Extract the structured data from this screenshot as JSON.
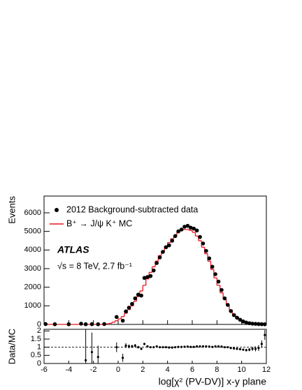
{
  "chart_data": [
    {
      "type": "histogram",
      "ylabel": "Events",
      "xlim": [
        -6,
        12
      ],
      "xticks": [
        -6,
        -4,
        -2,
        0,
        2,
        4,
        6,
        8,
        10,
        12
      ],
      "ylim": [
        0,
        6900
      ],
      "yticks": [
        0,
        1000,
        2000,
        3000,
        4000,
        5000,
        6000
      ],
      "annotations": [
        "ATLAS",
        "√s = 8 TeV, 2.7 fb⁻¹"
      ],
      "mc": {
        "name": "B⁺ → J/ψ K⁺ MC",
        "color": "#e8141e",
        "bins": [
          -6,
          -1,
          -0.75,
          -0.5,
          -0.25,
          0,
          0.25,
          0.5,
          0.75,
          1,
          1.25,
          1.5,
          1.75,
          2,
          2.25,
          2.5,
          2.75,
          3,
          3.25,
          3.5,
          3.75,
          4,
          4.25,
          4.5,
          4.75,
          5,
          5.25,
          5.5,
          5.75,
          6,
          6.25,
          6.5,
          6.75,
          7,
          7.25,
          7.5,
          7.75,
          8,
          8.25,
          8.5,
          8.75,
          9,
          9.25,
          9.5,
          9.75,
          10,
          10.25,
          10.5,
          10.75,
          11,
          11.25,
          11.5,
          11.75,
          12
        ],
        "counts": [
          0,
          30,
          60,
          120,
          200,
          300,
          420,
          600,
          800,
          1000,
          1250,
          1500,
          1800,
          2100,
          2450,
          2800,
          3100,
          3400,
          3700,
          3950,
          4200,
          4400,
          4600,
          4800,
          4950,
          5050,
          5100,
          5100,
          5050,
          4950,
          4750,
          4500,
          4150,
          3800,
          3400,
          2950,
          2500,
          2100,
          1700,
          1350,
          1050,
          780,
          560,
          400,
          280,
          190,
          130,
          90,
          60,
          40,
          25,
          15,
          10
        ]
      },
      "data": {
        "name": "2012 Background-subtracted data",
        "color": "#000000",
        "x": [
          -5.875,
          -5.125,
          -4.0,
          -3.0,
          -2.625,
          -2.125,
          -1.625,
          -1.125,
          -0.125,
          0.375,
          0.625,
          0.875,
          1.125,
          1.375,
          1.625,
          1.875,
          2.125,
          2.375,
          2.625,
          2.875,
          3.125,
          3.375,
          3.625,
          3.875,
          4.125,
          4.375,
          4.625,
          4.875,
          5.125,
          5.375,
          5.625,
          5.875,
          6.125,
          6.375,
          6.625,
          6.875,
          7.125,
          7.375,
          7.625,
          7.875,
          8.125,
          8.375,
          8.625,
          8.875,
          9.125,
          9.375,
          9.625,
          9.875,
          10.125,
          10.375,
          10.625,
          10.875,
          11.125,
          11.375,
          11.625,
          11.875
        ],
        "values": [
          20,
          10,
          10,
          40,
          10,
          15,
          10,
          20,
          400,
          200,
          700,
          900,
          1100,
          1400,
          1600,
          1550,
          2500,
          2550,
          2600,
          2900,
          3300,
          3600,
          3900,
          4150,
          4250,
          4500,
          4750,
          5000,
          5100,
          5250,
          5300,
          5200,
          5150,
          5050,
          4700,
          4350,
          3950,
          3550,
          3100,
          2700,
          2300,
          1850,
          1400,
          1050,
          720,
          500,
          360,
          250,
          160,
          100,
          65,
          40,
          30,
          20,
          12,
          8
        ]
      }
    },
    {
      "type": "scatter",
      "ylabel": "Data/MC",
      "xlabel": "log[χ² (PV-DV)] x-y plane",
      "xlim": [
        -6,
        12
      ],
      "xticks": [
        -6,
        -4,
        -2,
        0,
        2,
        4,
        6,
        8,
        10,
        12
      ],
      "ylim": [
        0,
        2.1
      ],
      "yticks": [
        0,
        0.5,
        1,
        1.5,
        2
      ],
      "reference": 1,
      "color": "#000000",
      "x": [
        -5.875,
        -5.125,
        -4.0,
        -3.0,
        -2.625,
        -2.125,
        -1.625,
        -1.125,
        -0.125,
        0.375,
        0.625,
        0.875,
        1.125,
        1.375,
        1.625,
        1.875,
        2.125,
        2.375,
        2.625,
        2.875,
        3.125,
        3.375,
        3.625,
        3.875,
        4.125,
        4.375,
        4.625,
        4.875,
        5.125,
        5.375,
        5.625,
        5.875,
        6.125,
        6.375,
        6.625,
        6.875,
        7.125,
        7.375,
        7.625,
        7.875,
        8.125,
        8.375,
        8.625,
        8.875,
        9.125,
        9.375,
        9.625,
        9.875,
        10.125,
        10.375,
        10.625,
        10.875,
        11.125,
        11.375,
        11.625,
        11.875
      ],
      "values": [
        null,
        null,
        null,
        null,
        0.2,
        0.7,
        0.4,
        null,
        1.0,
        0.35,
        1.1,
        1.05,
        1.05,
        1.1,
        1.0,
        0.9,
        1.2,
        1.05,
        1.0,
        1.0,
        1.05,
        1.0,
        1.0,
        1.0,
        0.98,
        0.98,
        1.0,
        1.02,
        1.02,
        1.03,
        1.04,
        1.02,
        1.02,
        1.05,
        1.05,
        1.05,
        1.05,
        1.04,
        1.02,
        1.05,
        1.05,
        1.04,
        1.0,
        1.0,
        0.95,
        0.92,
        0.9,
        0.88,
        0.85,
        0.82,
        0.85,
        0.9,
        0.9,
        0.95,
        1.2,
        1.75
      ],
      "errors": [
        null,
        null,
        null,
        null,
        2.0,
        1.2,
        0.7,
        null,
        0.3,
        0.25,
        0.15,
        0.12,
        0.1,
        0.1,
        0.08,
        0.07,
        0.05,
        0.04,
        0.04,
        0.04,
        0.03,
        0.03,
        0.03,
        0.03,
        0.03,
        0.03,
        0.03,
        0.03,
        0.03,
        0.03,
        0.03,
        0.03,
        0.03,
        0.03,
        0.03,
        0.03,
        0.03,
        0.03,
        0.03,
        0.03,
        0.03,
        0.03,
        0.04,
        0.04,
        0.04,
        0.05,
        0.05,
        0.06,
        0.07,
        0.08,
        0.1,
        0.12,
        0.15,
        0.18,
        0.22,
        0.3
      ]
    }
  ]
}
